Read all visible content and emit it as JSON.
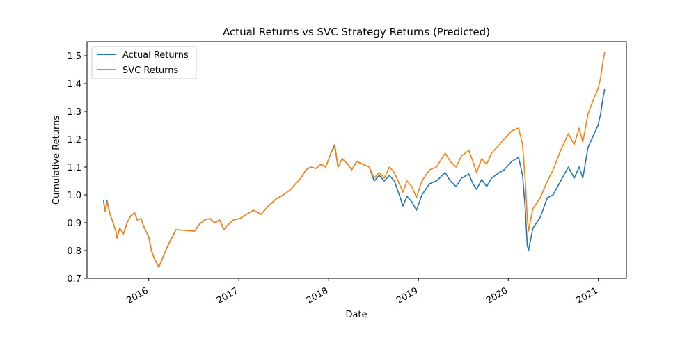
{
  "chart_data": {
    "type": "line",
    "title": "Actual Returns vs SVC Strategy Returns (Predicted)",
    "xlabel": "Date",
    "ylabel": "Cumulative Returns",
    "xlim": [
      "2015-04-25",
      "2021-04-25"
    ],
    "ylim": [
      0.7,
      1.55
    ],
    "x_ticks": [
      "2016",
      "2017",
      "2018",
      "2019",
      "2020",
      "2021"
    ],
    "y_ticks": [
      "0.7",
      "0.8",
      "0.9",
      "1.0",
      "1.1",
      "1.2",
      "1.3",
      "1.4",
      "1.5"
    ],
    "legend": {
      "placement": "upper-left"
    },
    "series": [
      {
        "name": "Actual Returns",
        "color": "#1f77b4",
        "points": [
          [
            "2015-07-01",
            0.98
          ],
          [
            "2015-07-08",
            0.94
          ],
          [
            "2015-07-15",
            0.98
          ],
          [
            "2015-07-28",
            0.93
          ],
          [
            "2015-08-05",
            0.91
          ],
          [
            "2015-08-20",
            0.87
          ],
          [
            "2015-08-25",
            0.845
          ],
          [
            "2015-09-05",
            0.88
          ],
          [
            "2015-09-20",
            0.86
          ],
          [
            "2015-10-05",
            0.9
          ],
          [
            "2015-10-20",
            0.925
          ],
          [
            "2015-11-05",
            0.935
          ],
          [
            "2015-11-15",
            0.91
          ],
          [
            "2015-12-01",
            0.915
          ],
          [
            "2015-12-10",
            0.89
          ],
          [
            "2015-12-20",
            0.87
          ],
          [
            "2016-01-01",
            0.85
          ],
          [
            "2016-01-12",
            0.8
          ],
          [
            "2016-01-22",
            0.775
          ],
          [
            "2016-02-05",
            0.75
          ],
          [
            "2016-02-11",
            0.74
          ],
          [
            "2016-02-25",
            0.77
          ],
          [
            "2016-03-10",
            0.8
          ],
          [
            "2016-03-25",
            0.83
          ],
          [
            "2016-04-10",
            0.855
          ],
          [
            "2016-04-20",
            0.875
          ],
          [
            "2016-07-05",
            0.87
          ],
          [
            "2016-07-25",
            0.895
          ],
          [
            "2016-08-15",
            0.91
          ],
          [
            "2016-09-05",
            0.915
          ],
          [
            "2016-09-25",
            0.9
          ],
          [
            "2016-10-15",
            0.91
          ],
          [
            "2016-11-01",
            0.875
          ],
          [
            "2016-11-15",
            0.89
          ],
          [
            "2016-12-10",
            0.91
          ],
          [
            "2017-01-05",
            0.915
          ],
          [
            "2017-02-01",
            0.93
          ],
          [
            "2017-03-01",
            0.945
          ],
          [
            "2017-04-01",
            0.93
          ],
          [
            "2017-05-01",
            0.96
          ],
          [
            "2017-06-01",
            0.985
          ],
          [
            "2017-07-01",
            1.0
          ],
          [
            "2017-08-01",
            1.02
          ],
          [
            "2017-08-20",
            1.04
          ],
          [
            "2017-09-10",
            1.06
          ],
          [
            "2017-10-01",
            1.09
          ],
          [
            "2017-10-20",
            1.1
          ],
          [
            "2017-11-10",
            1.095
          ],
          [
            "2017-12-01",
            1.11
          ],
          [
            "2017-12-20",
            1.1
          ],
          [
            "2018-01-10",
            1.15
          ],
          [
            "2018-01-26",
            1.18
          ],
          [
            "2018-02-08",
            1.1
          ],
          [
            "2018-02-25",
            1.13
          ],
          [
            "2018-03-20",
            1.11
          ],
          [
            "2018-04-05",
            1.09
          ],
          [
            "2018-04-25",
            1.12
          ],
          [
            "2018-05-20",
            1.11
          ],
          [
            "2018-06-15",
            1.1
          ],
          [
            "2018-07-05",
            1.05
          ],
          [
            "2018-07-25",
            1.07
          ],
          [
            "2018-08-15",
            1.05
          ],
          [
            "2018-09-05",
            1.07
          ],
          [
            "2018-09-25",
            1.05
          ],
          [
            "2018-10-15",
            1.0
          ],
          [
            "2018-10-30",
            0.96
          ],
          [
            "2018-11-15",
            0.995
          ],
          [
            "2018-12-05",
            0.975
          ],
          [
            "2018-12-24",
            0.945
          ],
          [
            "2019-01-15",
            1.0
          ],
          [
            "2019-02-15",
            1.04
          ],
          [
            "2019-03-15",
            1.05
          ],
          [
            "2019-04-20",
            1.08
          ],
          [
            "2019-05-10",
            1.05
          ],
          [
            "2019-06-03",
            1.03
          ],
          [
            "2019-06-25",
            1.06
          ],
          [
            "2019-07-25",
            1.075
          ],
          [
            "2019-08-10",
            1.04
          ],
          [
            "2019-08-25",
            1.02
          ],
          [
            "2019-09-15",
            1.055
          ],
          [
            "2019-10-05",
            1.03
          ],
          [
            "2019-10-25",
            1.06
          ],
          [
            "2019-11-25",
            1.08
          ],
          [
            "2019-12-15",
            1.09
          ],
          [
            "2020-01-15",
            1.12
          ],
          [
            "2020-02-12",
            1.135
          ],
          [
            "2020-02-28",
            1.07
          ],
          [
            "2020-03-10",
            0.95
          ],
          [
            "2020-03-18",
            0.82
          ],
          [
            "2020-03-23",
            0.8
          ],
          [
            "2020-04-10",
            0.88
          ],
          [
            "2020-05-10",
            0.92
          ],
          [
            "2020-06-08",
            0.99
          ],
          [
            "2020-07-01",
            1.0
          ],
          [
            "2020-08-01",
            1.05
          ],
          [
            "2020-09-01",
            1.1
          ],
          [
            "2020-09-25",
            1.06
          ],
          [
            "2020-10-15",
            1.1
          ],
          [
            "2020-10-30",
            1.06
          ],
          [
            "2020-11-20",
            1.17
          ],
          [
            "2020-12-15",
            1.22
          ],
          [
            "2020-12-31",
            1.25
          ],
          [
            "2021-01-10",
            1.29
          ],
          [
            "2021-01-20",
            1.35
          ],
          [
            "2021-01-27",
            1.38
          ]
        ]
      },
      {
        "name": "SVC Returns",
        "color": "#ff7f0e",
        "points": [
          [
            "2015-07-01",
            0.975
          ],
          [
            "2015-07-08",
            0.94
          ],
          [
            "2015-07-15",
            0.975
          ],
          [
            "2015-07-28",
            0.93
          ],
          [
            "2015-08-05",
            0.91
          ],
          [
            "2015-08-20",
            0.87
          ],
          [
            "2015-08-25",
            0.845
          ],
          [
            "2015-09-05",
            0.88
          ],
          [
            "2015-09-20",
            0.86
          ],
          [
            "2015-10-05",
            0.9
          ],
          [
            "2015-10-20",
            0.925
          ],
          [
            "2015-11-05",
            0.935
          ],
          [
            "2015-11-15",
            0.91
          ],
          [
            "2015-12-01",
            0.915
          ],
          [
            "2015-12-10",
            0.89
          ],
          [
            "2015-12-20",
            0.87
          ],
          [
            "2016-01-01",
            0.85
          ],
          [
            "2016-01-12",
            0.8
          ],
          [
            "2016-01-22",
            0.775
          ],
          [
            "2016-02-05",
            0.75
          ],
          [
            "2016-02-11",
            0.74
          ],
          [
            "2016-02-25",
            0.77
          ],
          [
            "2016-03-10",
            0.8
          ],
          [
            "2016-03-25",
            0.83
          ],
          [
            "2016-04-10",
            0.855
          ],
          [
            "2016-04-20",
            0.875
          ],
          [
            "2016-07-05",
            0.87
          ],
          [
            "2016-07-25",
            0.895
          ],
          [
            "2016-08-15",
            0.91
          ],
          [
            "2016-09-05",
            0.915
          ],
          [
            "2016-09-25",
            0.9
          ],
          [
            "2016-10-15",
            0.91
          ],
          [
            "2016-11-01",
            0.875
          ],
          [
            "2016-11-15",
            0.89
          ],
          [
            "2016-12-10",
            0.91
          ],
          [
            "2017-01-05",
            0.915
          ],
          [
            "2017-02-01",
            0.93
          ],
          [
            "2017-03-01",
            0.945
          ],
          [
            "2017-04-01",
            0.93
          ],
          [
            "2017-05-01",
            0.96
          ],
          [
            "2017-06-01",
            0.985
          ],
          [
            "2017-07-01",
            1.0
          ],
          [
            "2017-08-01",
            1.02
          ],
          [
            "2017-08-20",
            1.04
          ],
          [
            "2017-09-10",
            1.06
          ],
          [
            "2017-10-01",
            1.09
          ],
          [
            "2017-10-20",
            1.1
          ],
          [
            "2017-11-10",
            1.095
          ],
          [
            "2017-12-01",
            1.11
          ],
          [
            "2017-12-20",
            1.1
          ],
          [
            "2018-01-10",
            1.15
          ],
          [
            "2018-01-26",
            1.175
          ],
          [
            "2018-02-08",
            1.1
          ],
          [
            "2018-02-25",
            1.13
          ],
          [
            "2018-03-20",
            1.11
          ],
          [
            "2018-04-05",
            1.09
          ],
          [
            "2018-04-25",
            1.12
          ],
          [
            "2018-05-20",
            1.11
          ],
          [
            "2018-06-15",
            1.1
          ],
          [
            "2018-07-05",
            1.06
          ],
          [
            "2018-07-25",
            1.08
          ],
          [
            "2018-08-15",
            1.06
          ],
          [
            "2018-09-05",
            1.1
          ],
          [
            "2018-09-25",
            1.08
          ],
          [
            "2018-10-15",
            1.04
          ],
          [
            "2018-10-30",
            1.01
          ],
          [
            "2018-11-15",
            1.05
          ],
          [
            "2018-12-05",
            1.03
          ],
          [
            "2018-12-24",
            0.99
          ],
          [
            "2019-01-15",
            1.05
          ],
          [
            "2019-02-15",
            1.09
          ],
          [
            "2019-03-15",
            1.1
          ],
          [
            "2019-04-20",
            1.15
          ],
          [
            "2019-05-10",
            1.12
          ],
          [
            "2019-06-03",
            1.1
          ],
          [
            "2019-06-25",
            1.14
          ],
          [
            "2019-07-25",
            1.16
          ],
          [
            "2019-08-10",
            1.12
          ],
          [
            "2019-08-25",
            1.08
          ],
          [
            "2019-09-15",
            1.13
          ],
          [
            "2019-10-05",
            1.11
          ],
          [
            "2019-10-25",
            1.15
          ],
          [
            "2019-11-25",
            1.18
          ],
          [
            "2019-12-15",
            1.2
          ],
          [
            "2020-01-15",
            1.23
          ],
          [
            "2020-02-12",
            1.24
          ],
          [
            "2020-02-28",
            1.18
          ],
          [
            "2020-03-10",
            1.05
          ],
          [
            "2020-03-18",
            0.92
          ],
          [
            "2020-03-23",
            0.87
          ],
          [
            "2020-04-10",
            0.95
          ],
          [
            "2020-05-10",
            0.99
          ],
          [
            "2020-06-08",
            1.05
          ],
          [
            "2020-07-01",
            1.09
          ],
          [
            "2020-08-01",
            1.16
          ],
          [
            "2020-09-01",
            1.22
          ],
          [
            "2020-09-25",
            1.18
          ],
          [
            "2020-10-15",
            1.24
          ],
          [
            "2020-10-30",
            1.19
          ],
          [
            "2020-11-20",
            1.29
          ],
          [
            "2020-12-15",
            1.35
          ],
          [
            "2020-12-31",
            1.38
          ],
          [
            "2021-01-10",
            1.42
          ],
          [
            "2021-01-20",
            1.48
          ],
          [
            "2021-01-27",
            1.515
          ]
        ]
      }
    ]
  }
}
